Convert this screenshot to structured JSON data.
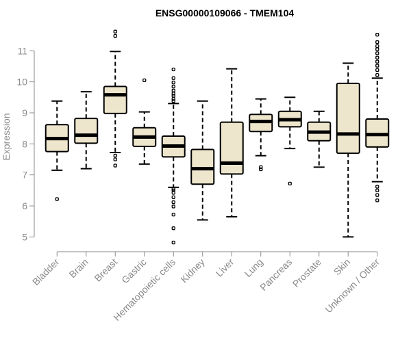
{
  "chart_data": {
    "type": "boxplot",
    "title": "ENSG00000109066 - TMEM104",
    "ylabel": "Expression",
    "xlabel": "",
    "ylim": [
      4.7,
      11.8
    ],
    "yticks": [
      5,
      6,
      7,
      8,
      9,
      10,
      11
    ],
    "grid": false,
    "box_fill": "#ede6cc",
    "axis_color": "#8a8a8a",
    "categories": [
      "Bladder",
      "Brain",
      "Breast",
      "Gastric",
      "Hematopoietic cells",
      "Kidney",
      "Liver",
      "Lung",
      "Pancreas",
      "Prostate",
      "Skin",
      "Unknown / Other"
    ],
    "boxes": [
      {
        "category": "Bladder",
        "q1": 7.75,
        "median": 8.17,
        "q3": 8.62,
        "whisker_low": 7.15,
        "whisker_high": 9.38,
        "outliers": [
          6.22
        ]
      },
      {
        "category": "Brain",
        "q1": 8.02,
        "median": 8.28,
        "q3": 8.82,
        "whisker_low": 7.2,
        "whisker_high": 9.68,
        "outliers": []
      },
      {
        "category": "Breast",
        "q1": 8.98,
        "median": 9.58,
        "q3": 9.85,
        "whisker_low": 7.72,
        "whisker_high": 10.98,
        "outliers": [
          7.3,
          7.5,
          7.62,
          11.48,
          11.62
        ]
      },
      {
        "category": "Gastric",
        "q1": 7.92,
        "median": 8.22,
        "q3": 8.52,
        "whisker_low": 7.35,
        "whisker_high": 9.03,
        "outliers": [
          10.05
        ]
      },
      {
        "category": "Hematopoietic cells",
        "q1": 7.58,
        "median": 7.93,
        "q3": 8.25,
        "whisker_low": 6.6,
        "whisker_high": 9.3,
        "outliers": [
          4.82,
          5.28,
          5.72,
          5.98,
          6.12,
          6.28,
          6.42,
          6.5,
          6.55,
          9.38,
          9.45,
          9.55,
          9.62,
          9.72,
          9.85,
          9.98,
          10.12,
          10.4
        ]
      },
      {
        "category": "Kidney",
        "q1": 6.7,
        "median": 7.2,
        "q3": 7.82,
        "whisker_low": 5.55,
        "whisker_high": 9.38,
        "outliers": []
      },
      {
        "category": "Liver",
        "q1": 7.03,
        "median": 7.38,
        "q3": 8.7,
        "whisker_low": 5.65,
        "whisker_high": 10.42,
        "outliers": []
      },
      {
        "category": "Lung",
        "q1": 8.4,
        "median": 8.72,
        "q3": 8.95,
        "whisker_low": 7.62,
        "whisker_high": 9.45,
        "outliers": [
          7.18,
          7.25
        ]
      },
      {
        "category": "Pancreas",
        "q1": 8.55,
        "median": 8.78,
        "q3": 9.05,
        "whisker_low": 7.85,
        "whisker_high": 9.5,
        "outliers": [
          6.72
        ]
      },
      {
        "category": "Prostate",
        "q1": 8.1,
        "median": 8.38,
        "q3": 8.7,
        "whisker_low": 7.25,
        "whisker_high": 9.05,
        "outliers": []
      },
      {
        "category": "Skin",
        "q1": 7.7,
        "median": 8.32,
        "q3": 9.95,
        "whisker_low": 5.0,
        "whisker_high": 10.6,
        "outliers": []
      },
      {
        "category": "Unknown / Other",
        "q1": 7.9,
        "median": 8.3,
        "q3": 8.8,
        "whisker_low": 6.78,
        "whisker_high": 10.12,
        "outliers": [
          6.18,
          6.35,
          6.5,
          6.62,
          10.22,
          10.38,
          10.52,
          10.65,
          10.78,
          10.92,
          11.05,
          11.15,
          11.28,
          11.52
        ]
      }
    ]
  }
}
